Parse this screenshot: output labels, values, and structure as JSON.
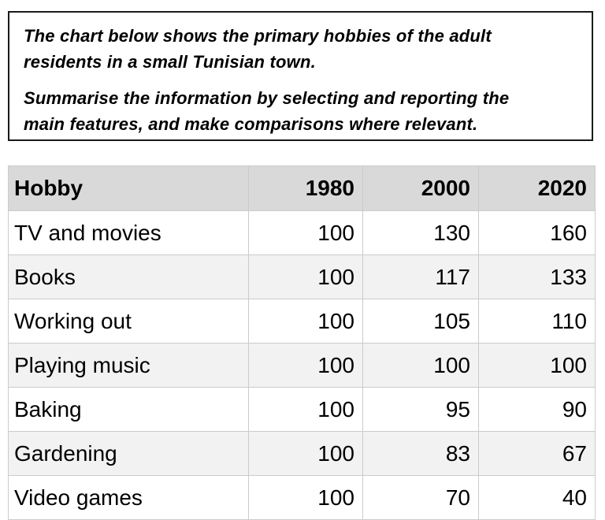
{
  "instructions": {
    "p1_lines": [
      "The chart below shows the primary hobbies of the adult",
      "residents in a small Tunisian town."
    ],
    "p2_lines": [
      "Summarise the information by selecting and reporting the",
      "main features, and make comparisons where relevant."
    ]
  },
  "chart_data": {
    "type": "table",
    "columns": [
      "Hobby",
      "1980",
      "2000",
      "2020"
    ],
    "rows": [
      {
        "hobby": "TV and movies",
        "values": [
          100,
          130,
          160
        ]
      },
      {
        "hobby": "Books",
        "values": [
          100,
          117,
          133
        ]
      },
      {
        "hobby": "Working out",
        "values": [
          100,
          105,
          110
        ]
      },
      {
        "hobby": "Playing music",
        "values": [
          100,
          100,
          100
        ]
      },
      {
        "hobby": "Baking",
        "values": [
          100,
          95,
          90
        ]
      },
      {
        "hobby": "Gardening",
        "values": [
          100,
          83,
          67
        ]
      },
      {
        "hobby": "Video games",
        "values": [
          100,
          70,
          40
        ]
      }
    ],
    "layout": {
      "header_row_shaded": true,
      "alternating_row_stripes": true,
      "value_alignment": "right"
    }
  },
  "colors": {
    "header_bg": "#d9d9d9",
    "row_alt_bg": "#f2f2f2",
    "cell_border": "#cbcbcb",
    "box_border": "#1a1a1a",
    "text": "#000000"
  }
}
